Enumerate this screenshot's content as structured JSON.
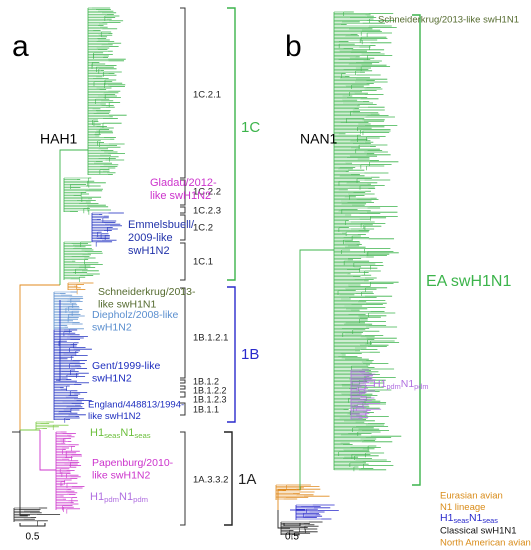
{
  "panels": [
    {
      "letter": "a",
      "title": "HAH1",
      "clades": [
        {
          "label": "1C.2.1"
        },
        {
          "label": "1C.2.2"
        },
        {
          "label": "1C.2.3"
        },
        {
          "label": "1C.2"
        },
        {
          "label": "1C.1"
        },
        {
          "label": "1B.1.2.1"
        },
        {
          "label": "1B.1.2"
        },
        {
          "label": "1B.1.2.2"
        },
        {
          "label": "1B.1.2.3"
        },
        {
          "label": "1B.1.1"
        },
        {
          "label": "1A.3.3.2"
        }
      ],
      "groups": [
        {
          "label": "1C",
          "color": "#3cb44b"
        },
        {
          "label": "1B",
          "color": "#2a2acc"
        },
        {
          "label": "1A",
          "color": "#222222"
        }
      ],
      "annotations": [
        {
          "lines": [
            "Gladau/2012-",
            "like swH1N2"
          ],
          "color": "#cc33cc"
        },
        {
          "lines": [
            "Emmelsbuell/",
            "2009-like",
            "swH1N2"
          ],
          "color": "#2233aa"
        },
        {
          "lines": [
            "Schneiderkrug/2013-",
            "like swH1N1"
          ],
          "color": "#556b2f"
        },
        {
          "lines": [
            "Diepholz/2008-like",
            "swH1N2"
          ],
          "color": "#5b8fcf"
        },
        {
          "lines": [
            "Gent/1999-like",
            "swH1N2"
          ],
          "color": "#1f2fbf"
        },
        {
          "lines": [
            "England/448813/1994-",
            "like swH1N2"
          ],
          "color": "#1f2fbf"
        },
        {
          "parts": [
            "H1",
            "seas",
            "N1",
            "seas"
          ],
          "color": "#6cbf3c"
        },
        {
          "lines": [
            "Papenburg/2010-",
            "like swH1N2"
          ],
          "color": "#cc33cc"
        },
        {
          "parts": [
            "H1",
            "pdm",
            "N1",
            "pdm"
          ],
          "color": "#b070e0"
        }
      ],
      "scale": "0.5"
    },
    {
      "letter": "b",
      "title": "NAN1",
      "clades": [],
      "groups": [
        {
          "label": "EA swH1N1",
          "color": "#3cb44b"
        }
      ],
      "annotations": [
        {
          "lines": [
            "Schneiderkrug/2013-like swH1N1"
          ],
          "color": "#556b2f"
        },
        {
          "parts": [
            "H1",
            "pdm",
            "N1",
            "pdm"
          ],
          "color": "#b070e0"
        },
        {
          "lines": [
            "Eurasian avian",
            "N1 lineage"
          ],
          "color": "#d98c1a"
        },
        {
          "parts": [
            "H1",
            "seas",
            "N1",
            "seas"
          ],
          "color": "#2a2acc"
        },
        {
          "lines": [
            "Classical swH1N1"
          ],
          "color": "#111111"
        },
        {
          "lines": [
            "North American avian"
          ],
          "color": "#d98c1a"
        }
      ],
      "scale": "0.5"
    }
  ]
}
